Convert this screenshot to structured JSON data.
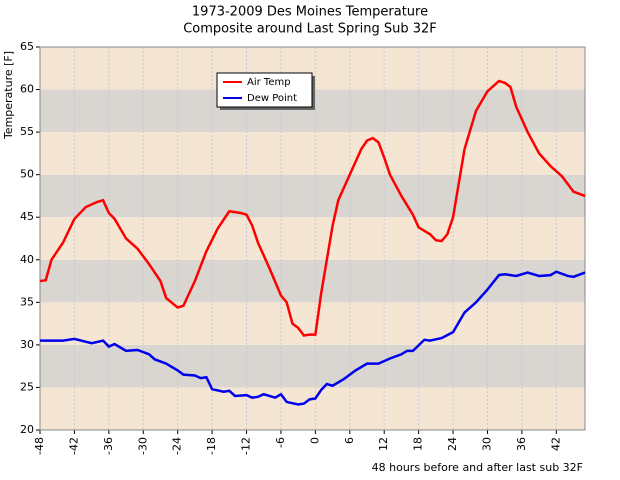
{
  "chart_data": {
    "type": "line",
    "title": "1973-2009 Des Moines Temperature",
    "subtitle": "Composite around Last Spring Sub 32F",
    "x_label": "48 hours before and after last sub 32F",
    "y_label": "Temperature [F]",
    "xlim": [
      -48,
      47
    ],
    "xticks": [
      -48,
      -42,
      -36,
      -30,
      -24,
      -18,
      -12,
      -6,
      0,
      6,
      12,
      18,
      24,
      30,
      36,
      42
    ],
    "ylim": [
      20,
      65
    ],
    "yticks": [
      20,
      25,
      30,
      35,
      40,
      45,
      50,
      55,
      60,
      65
    ],
    "bands": [
      "#f5e6d3",
      "#d9d5d1"
    ],
    "grid": true,
    "legend": "upper left",
    "series": [
      {
        "name": "Air Temp",
        "color": "#ff0000",
        "x": [
          -48,
          -47,
          -46,
          -44,
          -42,
          -40,
          -38,
          -37,
          -36,
          -35,
          -33,
          -31,
          -29,
          -27,
          -26,
          -24,
          -23,
          -21,
          -19,
          -17,
          -15,
          -13,
          -12,
          -11,
          -10,
          -8,
          -6,
          -5,
          -4,
          -3,
          -2,
          -1,
          0,
          1,
          2,
          3,
          4,
          6,
          8,
          9,
          10,
          11,
          12,
          13,
          15,
          17,
          18,
          20,
          21,
          22,
          23,
          24,
          25,
          26,
          28,
          30,
          32,
          33,
          34,
          35,
          37,
          39,
          41,
          43,
          45,
          47
        ],
        "values": [
          37.5,
          37.6,
          40,
          42,
          44.8,
          46.2,
          46.8,
          47,
          45.5,
          44.8,
          42.5,
          41.3,
          39.5,
          37.5,
          35.5,
          34.4,
          34.6,
          37.5,
          41,
          43.7,
          45.7,
          45.5,
          45.3,
          44,
          42,
          39,
          35.8,
          35,
          32.5,
          32,
          31.1,
          31.2,
          31.2,
          36,
          40,
          44,
          47,
          50,
          53,
          54,
          54.3,
          53.8,
          52,
          50,
          47.5,
          45.3,
          43.8,
          43,
          42.3,
          42.2,
          43,
          45,
          49,
          53,
          57.5,
          59.8,
          61,
          60.8,
          60.3,
          58,
          55,
          52.5,
          51,
          49.8,
          48,
          47.5
        ]
      },
      {
        "name": "Dew Point",
        "color": "#0000ee",
        "x": [
          -48,
          -44,
          -42,
          -39,
          -37,
          -36,
          -35,
          -33,
          -31,
          -29,
          -28,
          -26,
          -24,
          -23,
          -21,
          -20,
          -19,
          -18,
          -16,
          -15,
          -14,
          -12,
          -11,
          -10,
          -9,
          -8,
          -7,
          -6,
          -5,
          -3,
          -2,
          -1,
          0,
          1,
          2,
          3,
          5,
          7,
          9,
          11,
          13,
          15,
          16,
          17,
          19,
          20,
          22,
          24,
          26,
          28,
          30,
          32,
          33,
          35,
          37,
          39,
          41,
          42,
          44,
          45,
          47
        ],
        "values": [
          30.5,
          30.5,
          30.7,
          30.2,
          30.5,
          29.8,
          30.1,
          29.3,
          29.4,
          28.9,
          28.3,
          27.8,
          27,
          26.5,
          26.4,
          26.1,
          26.2,
          24.8,
          24.5,
          24.6,
          24,
          24.1,
          23.8,
          23.9,
          24.2,
          24,
          23.8,
          24.2,
          23.3,
          23,
          23.1,
          23.6,
          23.7,
          24.7,
          25.4,
          25.2,
          26,
          27,
          27.8,
          27.8,
          28.4,
          28.9,
          29.3,
          29.3,
          30.6,
          30.5,
          30.8,
          31.5,
          33.8,
          35,
          36.5,
          38.2,
          38.3,
          38.1,
          38.5,
          38.1,
          38.2,
          38.6,
          38.1,
          38,
          38.5
        ]
      }
    ]
  }
}
